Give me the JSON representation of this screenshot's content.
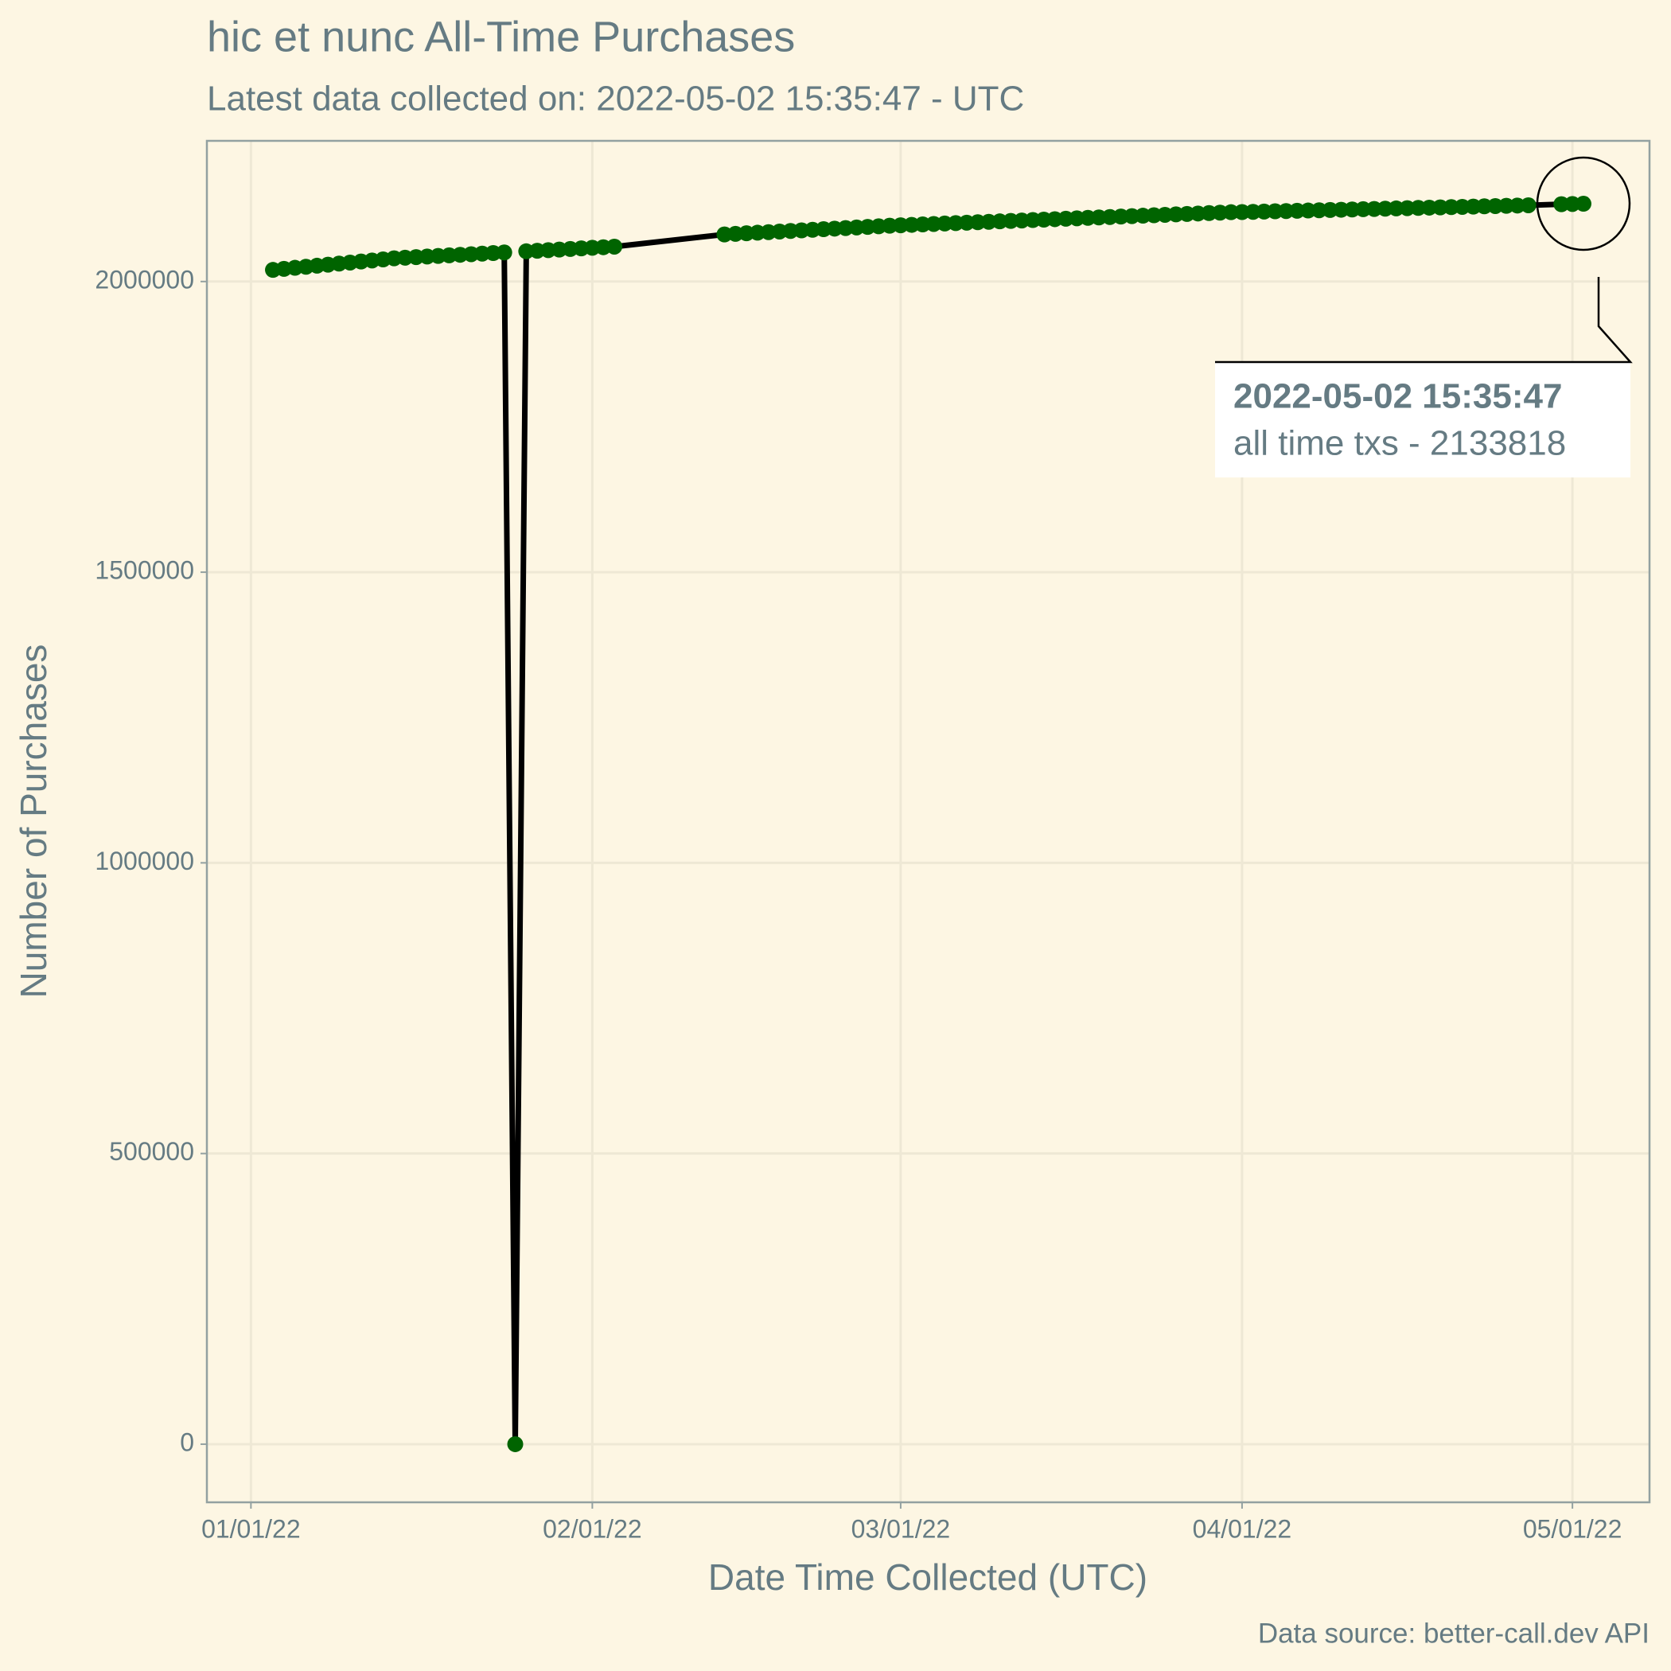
{
  "chart_data": {
    "type": "line",
    "title": "hic et nunc All-Time Purchases",
    "subtitle": "Latest data collected on: 2022-05-02 15:35:47  - UTC",
    "x_label": "Date Time Collected (UTC)",
    "y_label": "Number of Purchases",
    "caption": "Data source: better-call.dev API",
    "annotation": {
      "title": "2022-05-02 15:35:47",
      "text": "all time txs - 2133818"
    },
    "grid": true,
    "line_color": "#000000",
    "point_color": "#006400",
    "xlim": [
      "2021-12-28",
      "2022-05-08"
    ],
    "xticks": [
      {
        "value": "2022-01-01",
        "label": "01/01/22"
      },
      {
        "value": "2022-02-01",
        "label": "02/01/22"
      },
      {
        "value": "2022-03-01",
        "label": "03/01/22"
      },
      {
        "value": "2022-04-01",
        "label": "04/01/22"
      },
      {
        "value": "2022-05-01",
        "label": "05/01/22"
      }
    ],
    "ylim": [
      -100000,
      2242000
    ],
    "yticks": [
      0,
      500000,
      1000000,
      1500000,
      2000000
    ],
    "x": [
      "2022-01-03",
      "2022-01-04",
      "2022-01-05",
      "2022-01-06",
      "2022-01-07",
      "2022-01-08",
      "2022-01-09",
      "2022-01-10",
      "2022-01-11",
      "2022-01-12",
      "2022-01-13",
      "2022-01-14",
      "2022-01-15",
      "2022-01-16",
      "2022-01-17",
      "2022-01-18",
      "2022-01-19",
      "2022-01-20",
      "2022-01-21",
      "2022-01-22",
      "2022-01-23",
      "2022-01-24",
      "2022-01-25",
      "2022-01-26",
      "2022-01-27",
      "2022-01-28",
      "2022-01-29",
      "2022-01-30",
      "2022-01-31",
      "2022-02-01",
      "2022-02-02",
      "2022-02-03",
      "2022-02-13",
      "2022-02-14",
      "2022-02-15",
      "2022-02-16",
      "2022-02-17",
      "2022-02-18",
      "2022-02-19",
      "2022-02-20",
      "2022-02-21",
      "2022-02-22",
      "2022-02-23",
      "2022-02-24",
      "2022-02-25",
      "2022-02-26",
      "2022-02-27",
      "2022-02-28",
      "2022-03-01",
      "2022-03-02",
      "2022-03-03",
      "2022-03-04",
      "2022-03-05",
      "2022-03-06",
      "2022-03-07",
      "2022-03-08",
      "2022-03-09",
      "2022-03-10",
      "2022-03-11",
      "2022-03-12",
      "2022-03-13",
      "2022-03-14",
      "2022-03-15",
      "2022-03-16",
      "2022-03-17",
      "2022-03-18",
      "2022-03-19",
      "2022-03-20",
      "2022-03-21",
      "2022-03-22",
      "2022-03-23",
      "2022-03-24",
      "2022-03-25",
      "2022-03-26",
      "2022-03-27",
      "2022-03-28",
      "2022-03-29",
      "2022-03-30",
      "2022-03-31",
      "2022-04-01",
      "2022-04-02",
      "2022-04-03",
      "2022-04-04",
      "2022-04-05",
      "2022-04-06",
      "2022-04-07",
      "2022-04-08",
      "2022-04-09",
      "2022-04-10",
      "2022-04-11",
      "2022-04-12",
      "2022-04-13",
      "2022-04-14",
      "2022-04-15",
      "2022-04-16",
      "2022-04-17",
      "2022-04-18",
      "2022-04-19",
      "2022-04-20",
      "2022-04-21",
      "2022-04-22",
      "2022-04-23",
      "2022-04-24",
      "2022-04-25",
      "2022-04-26",
      "2022-04-27",
      "2022-04-30",
      "2022-05-01",
      "2022-05-02"
    ],
    "values": [
      2020000,
      2021800,
      2023600,
      2025400,
      2027200,
      2029000,
      2030800,
      2032600,
      2034400,
      2036200,
      2038000,
      2040000,
      2041000,
      2042000,
      2043000,
      2044000,
      2045000,
      2046000,
      2047000,
      2048000,
      2049000,
      2050000,
      0,
      2052000,
      2053000,
      2054000,
      2055000,
      2056000,
      2057000,
      2058000,
      2059000,
      2060000,
      2081000,
      2082000,
      2083000,
      2084000,
      2085000,
      2086000,
      2087000,
      2088000,
      2089000,
      2090000,
      2091000,
      2092000,
      2093000,
      2094000,
      2095000,
      2096000,
      2096750,
      2097500,
      2098250,
      2099000,
      2099750,
      2100500,
      2101250,
      2102000,
      2102750,
      2103500,
      2104250,
      2105000,
      2105750,
      2106500,
      2107250,
      2108000,
      2108750,
      2109500,
      2110250,
      2111000,
      2111750,
      2112500,
      2113250,
      2114000,
      2114750,
      2115500,
      2116250,
      2117000,
      2117750,
      2118500,
      2119250,
      2119450,
      2119900,
      2120350,
      2120800,
      2121250,
      2121700,
      2122150,
      2122600,
      2123050,
      2123500,
      2123950,
      2124400,
      2124850,
      2125300,
      2125750,
      2126200,
      2126650,
      2127100,
      2127550,
      2128000,
      2128450,
      2128900,
      2129350,
      2129800,
      2130250,
      2130700,
      2131150,
      2133000,
      2133400,
      2133818
    ]
  }
}
